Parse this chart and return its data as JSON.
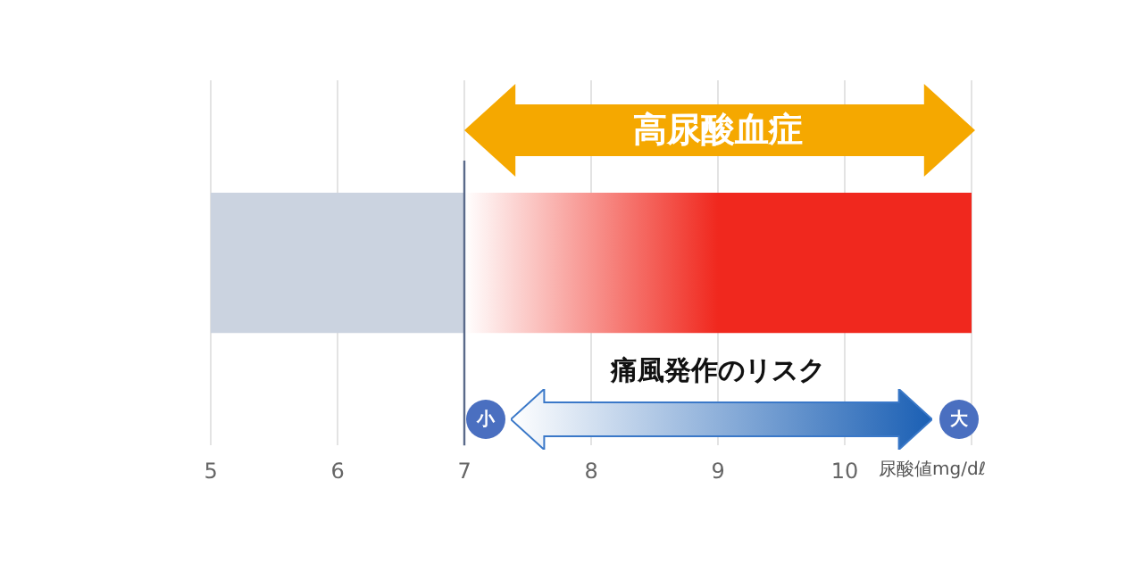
{
  "chart_data": {
    "type": "bar",
    "orientation": "horizontal",
    "categories": [
      null
    ],
    "series": [
      {
        "color": "#cbd3e0",
        "values": [
          2
        ],
        "base": [
          5
        ]
      },
      {
        "color": "#f0281e",
        "values": [
          4
        ],
        "base": [
          7
        ]
      }
    ],
    "xlim": [
      5,
      11
    ],
    "xticks": [
      5,
      6,
      7,
      8,
      9,
      10,
      {
        "value": 11,
        "label": null
      }
    ],
    "xlabel": "尿酸値mg/dℓ",
    "grid": "x",
    "legend": false,
    "ref_lines": [
      {
        "axis": "x",
        "value": 7,
        "color": "#5a6a8a"
      }
    ],
    "annotations": [
      "高尿酸血症",
      "痛風発作のリスク",
      "小",
      "大"
    ]
  }
}
